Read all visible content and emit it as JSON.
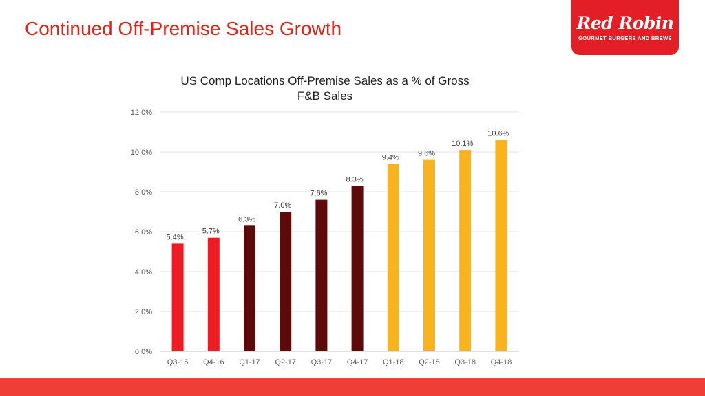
{
  "slide": {
    "title": "Continued Off-Premise Sales Growth"
  },
  "logo": {
    "name": "Red Robin",
    "tagline": "GOURMET BURGERS AND BREWS"
  },
  "colors": {
    "title": "#e2231a",
    "brand_red": "#e41e26",
    "bar_2016": "#ed1c24",
    "bar_2017": "#5c0a0a",
    "bar_2018": "#fbb21f",
    "footer_bar": "#ef3e36"
  },
  "chart_data": {
    "type": "bar",
    "title_lines": [
      "US Comp Locations Off-Premise Sales as a % of Gross",
      "F&B Sales"
    ],
    "categories": [
      "Q3-16",
      "Q4-16",
      "Q1-17",
      "Q2-17",
      "Q3-17",
      "Q4-17",
      "Q1-18",
      "Q2-18",
      "Q3-18",
      "Q4-18"
    ],
    "values": [
      5.4,
      5.7,
      6.3,
      7.0,
      7.6,
      8.3,
      9.4,
      9.6,
      10.1,
      10.6
    ],
    "value_labels": [
      "5.4%",
      "5.7%",
      "6.3%",
      "7.0%",
      "7.6%",
      "8.3%",
      "9.4%",
      "9.6%",
      "10.1%",
      "10.6%"
    ],
    "bar_colors": [
      "#ed1c24",
      "#ed1c24",
      "#5c0a0a",
      "#5c0a0a",
      "#5c0a0a",
      "#5c0a0a",
      "#fbb21f",
      "#fbb21f",
      "#fbb21f",
      "#fbb21f"
    ],
    "y_ticks": [
      "0.0%",
      "2.0%",
      "4.0%",
      "6.0%",
      "8.0%",
      "10.0%",
      "12.0%"
    ],
    "ylim": [
      0,
      12
    ],
    "xlabel": "",
    "ylabel": "",
    "grid": true,
    "legend": "none"
  }
}
